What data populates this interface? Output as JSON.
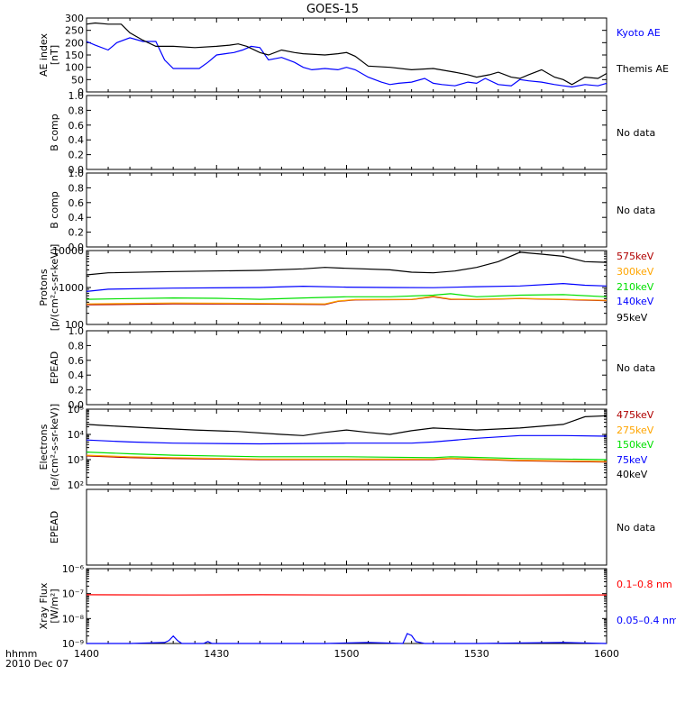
{
  "title": "GOES-15",
  "time_axis": {
    "ticks": [
      "1400",
      "1430",
      "1500",
      "1530",
      "1600"
    ],
    "corner_label_1": "hhmm",
    "corner_label_2": "2010 Dec 07"
  },
  "colors": {
    "black": "#000000",
    "red": "#ff0000",
    "orange": "#ffa500",
    "green": "#00e000",
    "blue": "#0000ff",
    "darkred": "#b00000"
  },
  "chart_data": [
    {
      "type": "line",
      "id": "ae",
      "ylabel": [
        "AE index",
        "[nT]"
      ],
      "ylim": [
        0,
        300
      ],
      "scale": "linear",
      "ticks": [
        "300",
        "250",
        "200",
        "150",
        "100",
        "50",
        "0"
      ],
      "tickvals": [
        300,
        250,
        200,
        150,
        100,
        50,
        0
      ],
      "series": [
        {
          "name": "Kyoto AE",
          "color": "#0000ff",
          "x": [
            0,
            2,
            5,
            7,
            10,
            13,
            16,
            18,
            20,
            23,
            26,
            28,
            30,
            32,
            34,
            36,
            38,
            40,
            42,
            45,
            48,
            50,
            52,
            55,
            58,
            60,
            62,
            65,
            68,
            70,
            72,
            75,
            78,
            80,
            82,
            85,
            88,
            90,
            92,
            95,
            98,
            100,
            102,
            105,
            108,
            110,
            112,
            115,
            118,
            120
          ],
          "y": [
            205,
            190,
            170,
            200,
            220,
            205,
            205,
            130,
            95,
            95,
            95,
            120,
            150,
            155,
            160,
            170,
            185,
            180,
            130,
            140,
            120,
            100,
            90,
            95,
            90,
            100,
            90,
            60,
            40,
            30,
            35,
            40,
            55,
            35,
            30,
            25,
            40,
            35,
            55,
            30,
            25,
            50,
            45,
            40,
            30,
            25,
            20,
            30,
            25,
            35
          ]
        },
        {
          "name": "Themis AE",
          "color": "#000000",
          "x": [
            0,
            2,
            5,
            8,
            10,
            13,
            16,
            20,
            25,
            30,
            33,
            35,
            37,
            40,
            42,
            45,
            48,
            50,
            55,
            58,
            60,
            62,
            65,
            70,
            75,
            80,
            85,
            88,
            90,
            93,
            95,
            98,
            100,
            102,
            105,
            108,
            110,
            112,
            115,
            118,
            120
          ],
          "y": [
            275,
            280,
            275,
            275,
            240,
            210,
            185,
            185,
            180,
            185,
            190,
            195,
            185,
            160,
            150,
            170,
            160,
            155,
            150,
            155,
            160,
            145,
            105,
            100,
            90,
            95,
            80,
            70,
            60,
            70,
            80,
            60,
            55,
            70,
            90,
            60,
            50,
            30,
            60,
            55,
            75
          ]
        }
      ]
    },
    {
      "type": "line",
      "id": "b1",
      "ylabel": [
        "B comp"
      ],
      "ylim": [
        0,
        1
      ],
      "scale": "linear",
      "ticks": [
        "1.0",
        "0.8",
        "0.6",
        "0.4",
        "0.2",
        "0.0"
      ],
      "tickvals": [
        1.0,
        0.8,
        0.6,
        0.4,
        0.2,
        0.0
      ],
      "series": [],
      "legend": [
        {
          "label": "No data",
          "color": "#000000"
        }
      ]
    },
    {
      "type": "line",
      "id": "b2",
      "ylabel": [
        "B comp"
      ],
      "ylim": [
        0,
        1
      ],
      "scale": "linear",
      "ticks": [
        "1.0",
        "0.8",
        "0.6",
        "0.4",
        "0.2",
        "0.0"
      ],
      "tickvals": [
        1.0,
        0.8,
        0.6,
        0.4,
        0.2,
        0.0
      ],
      "series": [],
      "legend": [
        {
          "label": "No data",
          "color": "#000000"
        }
      ]
    },
    {
      "type": "line",
      "id": "protons",
      "ylabel": [
        "Protons",
        "[p/(cm²-s-sr-keV)]"
      ],
      "ylim": [
        100,
        10000
      ],
      "scale": "log",
      "ticks": [
        "10000",
        "1000",
        "100"
      ],
      "tickvals": [
        10000,
        1000,
        100
      ],
      "series": [
        {
          "name": "575keV",
          "color": "#b00000",
          "x": [
            0,
            20,
            40,
            55,
            58,
            62,
            75,
            80,
            84,
            90,
            100,
            110,
            120
          ],
          "y": [
            340,
            360,
            355,
            345,
            420,
            460,
            470,
            560,
            480,
            470,
            500,
            470,
            440
          ]
        },
        {
          "name": "300keV",
          "color": "#ffa500",
          "x": [
            0,
            20,
            40,
            55,
            58,
            62,
            75,
            80,
            84,
            90,
            100,
            110,
            120
          ],
          "y": [
            360,
            380,
            370,
            360,
            430,
            470,
            480,
            580,
            490,
            480,
            510,
            480,
            450
          ]
        },
        {
          "name": "210keV",
          "color": "#00e000",
          "x": [
            0,
            10,
            20,
            30,
            40,
            50,
            60,
            70,
            80,
            84,
            90,
            100,
            110,
            120
          ],
          "y": [
            480,
            500,
            520,
            510,
            480,
            520,
            560,
            560,
            620,
            680,
            560,
            620,
            640,
            560
          ]
        },
        {
          "name": "140keV",
          "color": "#0000ff",
          "x": [
            0,
            5,
            20,
            40,
            50,
            60,
            70,
            80,
            90,
            100,
            110,
            115,
            120
          ],
          "y": [
            780,
            900,
            960,
            1000,
            1080,
            1020,
            1000,
            990,
            1050,
            1100,
            1280,
            1150,
            1100
          ]
        },
        {
          "name": "95keV",
          "color": "#000000",
          "x": [
            0,
            5,
            20,
            40,
            50,
            55,
            60,
            70,
            75,
            80,
            85,
            90,
            95,
            100,
            105,
            110,
            115,
            120
          ],
          "y": [
            2200,
            2500,
            2700,
            2900,
            3200,
            3500,
            3300,
            3000,
            2600,
            2500,
            2800,
            3500,
            5000,
            9000,
            8000,
            7000,
            5000,
            4800
          ]
        }
      ]
    },
    {
      "type": "line",
      "id": "epead1",
      "ylabel": [
        "EPEAD"
      ],
      "ylim": [
        0,
        1
      ],
      "scale": "linear",
      "ticks": [
        "1.0",
        "0.8",
        "0.6",
        "0.4",
        "0.2",
        "0.0"
      ],
      "tickvals": [
        1.0,
        0.8,
        0.6,
        0.4,
        0.2,
        0.0
      ],
      "series": [],
      "legend": [
        {
          "label": "No data",
          "color": "#000000"
        }
      ]
    },
    {
      "type": "line",
      "id": "electrons",
      "ylabel": [
        "Electrons",
        "[e/(cm²-s-sr-keV)]"
      ],
      "ylim": [
        100,
        100000
      ],
      "scale": "log",
      "ticks": [
        "10⁵",
        "10⁴",
        "10³",
        "10²"
      ],
      "tickvals": [
        100000,
        10000,
        1000,
        100
      ],
      "series": [
        {
          "name": "475keV",
          "color": "#b00000",
          "x": [
            0,
            10,
            20,
            40,
            60,
            80,
            84,
            100,
            120
          ],
          "y": [
            1400,
            1200,
            1100,
            1000,
            1000,
            1000,
            1100,
            900,
            800
          ]
        },
        {
          "name": "275keV",
          "color": "#ffa500",
          "x": [
            0,
            10,
            20,
            40,
            60,
            80,
            84,
            100,
            120
          ],
          "y": [
            1500,
            1300,
            1200,
            1050,
            1050,
            1050,
            1150,
            950,
            850
          ]
        },
        {
          "name": "150keV",
          "color": "#00e000",
          "x": [
            0,
            10,
            20,
            40,
            60,
            80,
            84,
            100,
            120
          ],
          "y": [
            2000,
            1700,
            1500,
            1300,
            1300,
            1200,
            1300,
            1100,
            1000
          ]
        },
        {
          "name": "75keV",
          "color": "#0000ff",
          "x": [
            0,
            10,
            20,
            40,
            60,
            75,
            80,
            90,
            100,
            110,
            120
          ],
          "y": [
            6000,
            5000,
            4500,
            4200,
            4500,
            4500,
            5000,
            7000,
            9000,
            9000,
            8500
          ]
        },
        {
          "name": "40keV",
          "color": "#000000",
          "x": [
            0,
            5,
            15,
            25,
            35,
            45,
            50,
            55,
            60,
            65,
            70,
            75,
            80,
            90,
            100,
            110,
            115,
            120
          ],
          "y": [
            25000,
            22000,
            18000,
            15000,
            13000,
            10000,
            9000,
            12000,
            15000,
            12000,
            10000,
            14000,
            18000,
            15000,
            18000,
            25000,
            50000,
            55000
          ]
        }
      ]
    },
    {
      "type": "line",
      "id": "epead2",
      "ylabel": [
        "EPEAD"
      ],
      "ylim": [
        0,
        1
      ],
      "scale": "linear",
      "ticks": [],
      "tickvals": [],
      "series": [],
      "legend": [
        {
          "label": "No data",
          "color": "#000000"
        }
      ]
    },
    {
      "type": "line",
      "id": "xray",
      "ylabel": [
        "Xray Flux",
        "[W/m²]"
      ],
      "ylim": [
        1e-09,
        1e-06
      ],
      "scale": "log",
      "ticks": [
        "10⁻⁶",
        "10⁻⁷",
        "10⁻⁸",
        "10⁻⁹"
      ],
      "tickvals": [
        1e-06,
        1e-07,
        1e-08,
        1e-09
      ],
      "series": [
        {
          "name": "0.1–0.8 nm",
          "color": "#ff0000",
          "x": [
            0,
            20,
            40,
            60,
            80,
            100,
            120
          ],
          "y": [
            9e-08,
            8.8e-08,
            9e-08,
            8.8e-08,
            8.9e-08,
            8.8e-08,
            8.9e-08
          ]
        },
        {
          "name": "0.05–0.4 nm",
          "color": "#0000ff",
          "x": [
            0,
            10,
            18,
            19,
            20,
            21,
            22,
            27,
            28,
            29,
            30,
            55,
            65,
            73,
            74,
            75,
            76,
            78,
            90,
            110,
            120
          ],
          "y": [
            1e-09,
            1e-09,
            1.1e-09,
            1.3e-09,
            2e-09,
            1.3e-09,
            1e-09,
            1e-09,
            1.2e-09,
            1e-09,
            1e-09,
            1e-09,
            1.1e-09,
            1e-09,
            2.5e-09,
            2.1e-09,
            1.2e-09,
            1e-09,
            1e-09,
            1.1e-09,
            1e-09
          ]
        }
      ]
    }
  ]
}
